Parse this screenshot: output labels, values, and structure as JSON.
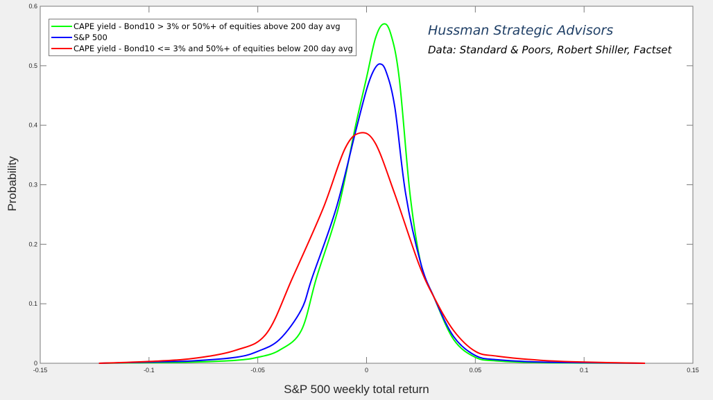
{
  "chart_data": {
    "type": "line",
    "title": "",
    "xlabel": "S&P 500 weekly total return",
    "ylabel": "Probability",
    "xlim": [
      -0.15,
      0.15
    ],
    "ylim": [
      0,
      0.6
    ],
    "xticks": [
      "-0.15",
      "-0.1",
      "-0.05",
      "0",
      "0.05",
      "0.1",
      "0.15"
    ],
    "xtick_values": [
      -0.15,
      -0.1,
      -0.05,
      0,
      0.05,
      0.1,
      0.15
    ],
    "yticks": [
      "0",
      "0.1",
      "0.2",
      "0.3",
      "0.4",
      "0.5",
      "0.6"
    ],
    "ytick_values": [
      0,
      0.1,
      0.2,
      0.3,
      0.4,
      0.5,
      0.6
    ],
    "grid": false,
    "legend_position": "upper-left",
    "annotations": [
      "Hussman Strategic Advisors",
      "Data: Standard & Poors, Robert Shiller, Factset"
    ],
    "series": [
      {
        "name": "CAPE yield - Bond10 > 3% or 50%+ of equities above 200 day avg",
        "color": "#00ff00",
        "x": [
          -0.123,
          -0.1,
          -0.08,
          -0.06,
          -0.05,
          -0.04,
          -0.03,
          -0.023,
          -0.013,
          -0.005,
          0.0,
          0.004,
          0.0076,
          0.011,
          0.015,
          0.02,
          0.025,
          0.031,
          0.04,
          0.05,
          0.06,
          0.08,
          0.1,
          0.128
        ],
        "y": [
          0.0,
          0.001,
          0.002,
          0.005,
          0.01,
          0.022,
          0.055,
          0.144,
          0.26,
          0.4,
          0.48,
          0.545,
          0.57,
          0.555,
          0.48,
          0.284,
          0.167,
          0.111,
          0.04,
          0.01,
          0.004,
          0.001,
          0.0005,
          0.0
        ]
      },
      {
        "name": "S&P 500",
        "color": "#0000ff",
        "x": [
          -0.123,
          -0.1,
          -0.08,
          -0.06,
          -0.05,
          -0.04,
          -0.03,
          -0.025,
          -0.014,
          -0.005,
          0.0,
          0.003,
          0.006,
          0.009,
          0.013,
          0.018,
          0.025,
          0.031,
          0.04,
          0.05,
          0.06,
          0.08,
          0.1,
          0.128
        ],
        "y": [
          0.0,
          0.002,
          0.004,
          0.01,
          0.02,
          0.04,
          0.09,
          0.144,
          0.26,
          0.39,
          0.46,
          0.49,
          0.503,
          0.49,
          0.43,
          0.284,
          0.167,
          0.111,
          0.045,
          0.013,
          0.006,
          0.002,
          0.001,
          0.0
        ]
      },
      {
        "name": "CAPE yield - Bond10 <= 3% and 50%+ of equities below 200 day avg",
        "color": "#ff0000",
        "x": [
          -0.123,
          -0.1,
          -0.08,
          -0.06,
          -0.046,
          -0.034,
          -0.02,
          -0.01,
          -0.003,
          0.004,
          0.013,
          0.024,
          0.031,
          0.04,
          0.05,
          0.06,
          0.08,
          0.1,
          0.128
        ],
        "y": [
          0.0,
          0.003,
          0.008,
          0.022,
          0.05,
          0.144,
          0.26,
          0.36,
          0.387,
          0.37,
          0.284,
          0.167,
          0.111,
          0.055,
          0.02,
          0.012,
          0.005,
          0.002,
          0.0
        ]
      }
    ]
  },
  "legend": {
    "items": [
      {
        "label": "CAPE yield - Bond10 > 3% or 50%+ of equities above 200 day avg",
        "color": "#00ff00"
      },
      {
        "label": "S&P 500",
        "color": "#0000ff"
      },
      {
        "label": "CAPE yield - Bond10 <= 3% and 50%+ of equities below 200 day avg",
        "color": "#ff0000"
      }
    ]
  },
  "annotation": {
    "title": "Hussman Strategic Advisors",
    "subtitle": "Data: Standard & Poors, Robert Shiller, Factset"
  }
}
